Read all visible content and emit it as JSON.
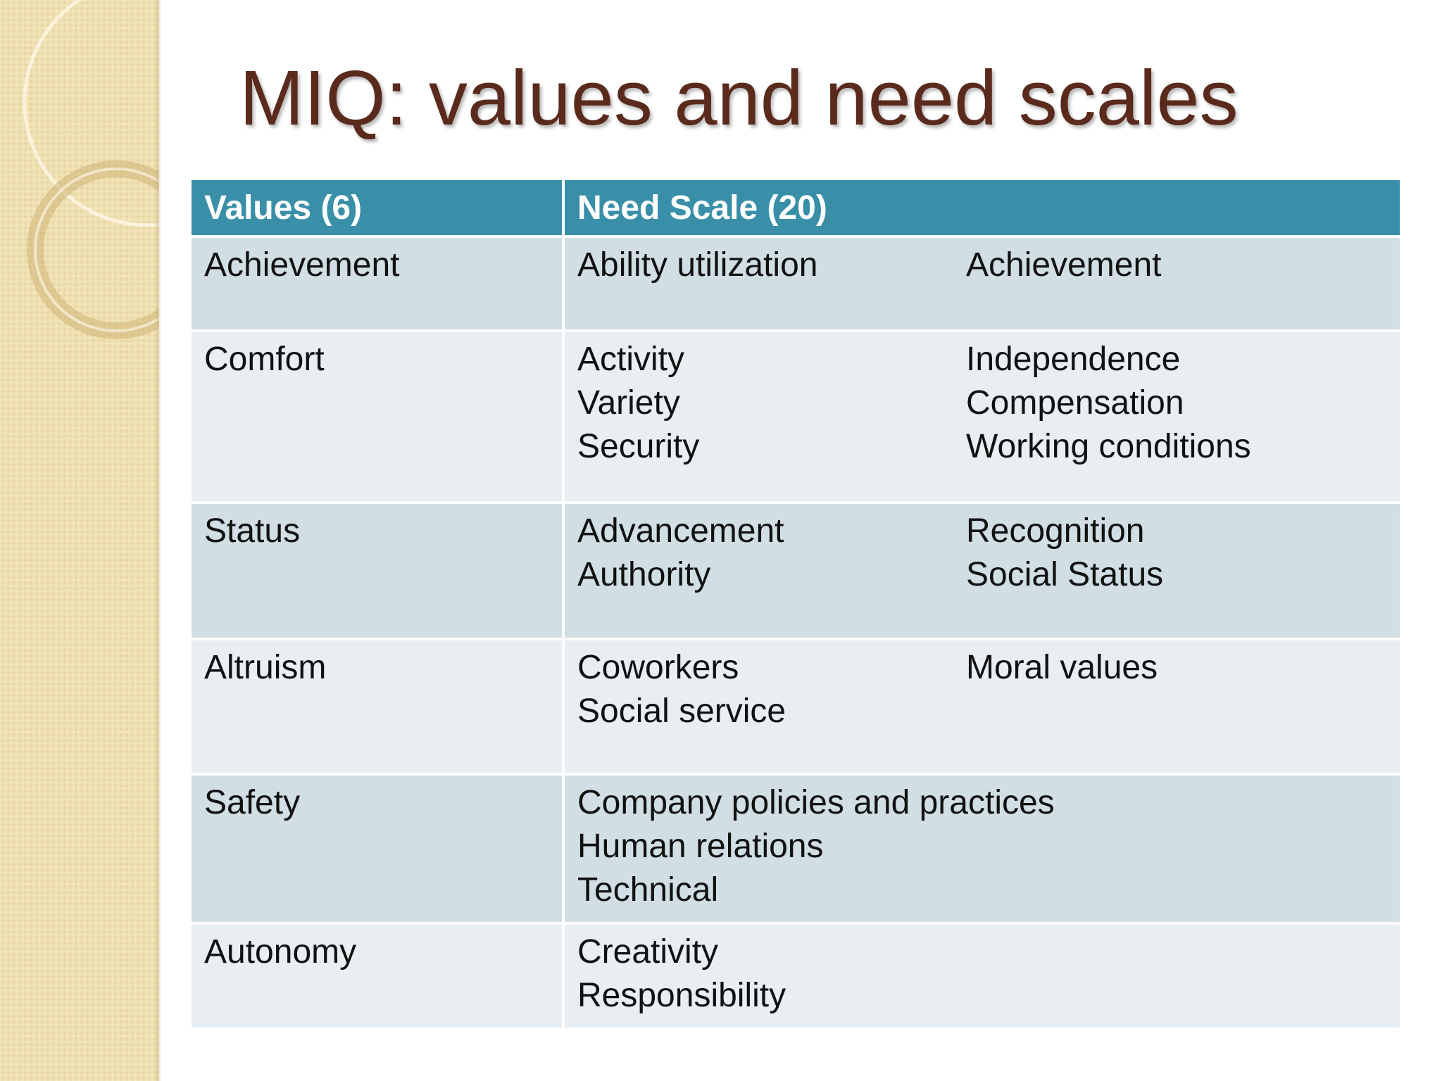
{
  "slide": {
    "title": "MIQ: values and need scales"
  },
  "table": {
    "headers": {
      "values": "Values (6)",
      "need": "Need Scale (20)"
    },
    "rows": [
      {
        "value": "Achievement",
        "needs": [
          "Ability utilization",
          "Achievement"
        ]
      },
      {
        "value": "Comfort",
        "needs": [
          "Activity",
          "Independence",
          "Variety",
          "Compensation",
          "Security",
          "Working conditions"
        ]
      },
      {
        "value": "Status",
        "needs": [
          "Advancement",
          "Recognition",
          "Authority",
          "Social Status"
        ]
      },
      {
        "value": "Altruism",
        "needs": [
          "Coworkers",
          "Moral values",
          "Social service"
        ]
      },
      {
        "value": "Safety",
        "needs": [
          "Company policies and practices",
          "Human relations",
          "Technical"
        ]
      },
      {
        "value": "Autonomy",
        "needs": [
          "Creativity",
          "Responsibility"
        ]
      }
    ]
  },
  "colors": {
    "header_bg": "#3a8fa8",
    "row_dark": "#d1dee4",
    "row_light": "#e8eef2",
    "title": "#5a2a1c",
    "side_band": "#efe0b2"
  }
}
